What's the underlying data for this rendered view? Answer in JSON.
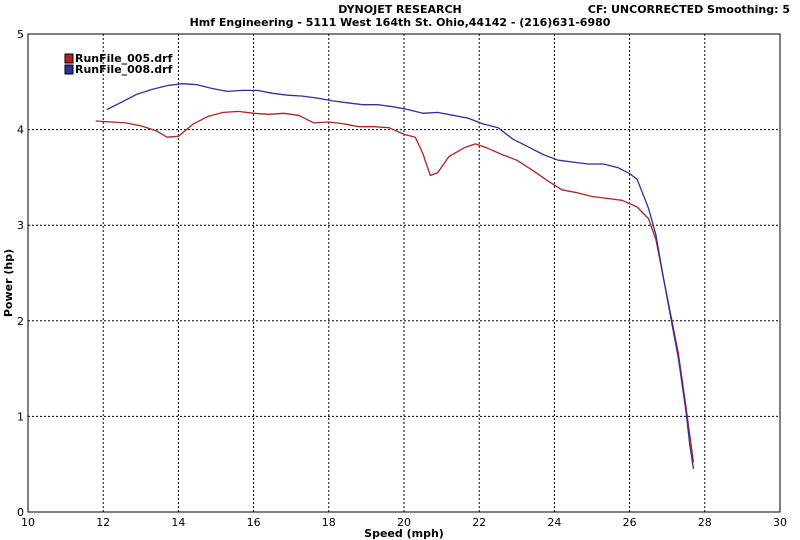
{
  "header": {
    "title": "DYNOJET RESEARCH",
    "subtitle": "Hmf Engineering - 5111 West 164th St. Ohio,44142 - (216)631-6980",
    "cf_info": "CF: UNCORRECTED  Smoothing: 5"
  },
  "chart_data": {
    "type": "line",
    "xlabel": "Speed (mph)",
    "ylabel": "Power (hp)",
    "xlim": [
      10,
      30
    ],
    "ylim": [
      0,
      5
    ],
    "xticks": [
      10,
      12,
      14,
      16,
      18,
      20,
      22,
      24,
      26,
      28,
      30
    ],
    "yticks": [
      0,
      1,
      2,
      3,
      4,
      5
    ],
    "grid": true,
    "legend_position": "top-left",
    "series": [
      {
        "name": "RunFile_005.drf",
        "color": "#b22222",
        "points": [
          [
            11.8,
            4.09
          ],
          [
            12.2,
            4.08
          ],
          [
            12.6,
            4.07
          ],
          [
            13.0,
            4.04
          ],
          [
            13.4,
            3.99
          ],
          [
            13.7,
            3.92
          ],
          [
            14.0,
            3.93
          ],
          [
            14.4,
            4.06
          ],
          [
            14.8,
            4.14
          ],
          [
            15.2,
            4.18
          ],
          [
            15.6,
            4.19
          ],
          [
            16.0,
            4.17
          ],
          [
            16.4,
            4.16
          ],
          [
            16.8,
            4.17
          ],
          [
            17.2,
            4.15
          ],
          [
            17.6,
            4.07
          ],
          [
            18.0,
            4.08
          ],
          [
            18.4,
            4.06
          ],
          [
            18.8,
            4.03
          ],
          [
            19.2,
            4.03
          ],
          [
            19.6,
            4.02
          ],
          [
            20.0,
            3.95
          ],
          [
            20.3,
            3.92
          ],
          [
            20.5,
            3.75
          ],
          [
            20.7,
            3.52
          ],
          [
            20.9,
            3.55
          ],
          [
            21.2,
            3.72
          ],
          [
            21.6,
            3.81
          ],
          [
            21.9,
            3.85
          ],
          [
            22.2,
            3.81
          ],
          [
            22.6,
            3.74
          ],
          [
            23.0,
            3.68
          ],
          [
            23.4,
            3.58
          ],
          [
            23.8,
            3.47
          ],
          [
            24.2,
            3.37
          ],
          [
            24.6,
            3.34
          ],
          [
            25.0,
            3.3
          ],
          [
            25.4,
            3.28
          ],
          [
            25.8,
            3.26
          ],
          [
            26.2,
            3.19
          ],
          [
            26.5,
            3.07
          ],
          [
            26.7,
            2.85
          ],
          [
            26.9,
            2.45
          ],
          [
            27.1,
            2.05
          ],
          [
            27.3,
            1.65
          ],
          [
            27.5,
            1.1
          ],
          [
            27.6,
            0.8
          ],
          [
            27.7,
            0.52
          ]
        ]
      },
      {
        "name": "RunFile_008.drf",
        "color": "#2f2f9f",
        "points": [
          [
            12.1,
            4.21
          ],
          [
            12.5,
            4.29
          ],
          [
            12.9,
            4.37
          ],
          [
            13.3,
            4.42
          ],
          [
            13.7,
            4.46
          ],
          [
            14.1,
            4.48
          ],
          [
            14.5,
            4.47
          ],
          [
            14.9,
            4.43
          ],
          [
            15.3,
            4.4
          ],
          [
            15.7,
            4.41
          ],
          [
            16.1,
            4.41
          ],
          [
            16.5,
            4.38
          ],
          [
            16.9,
            4.36
          ],
          [
            17.3,
            4.35
          ],
          [
            17.7,
            4.33
          ],
          [
            18.1,
            4.3
          ],
          [
            18.5,
            4.28
          ],
          [
            18.9,
            4.26
          ],
          [
            19.3,
            4.26
          ],
          [
            19.7,
            4.24
          ],
          [
            20.1,
            4.21
          ],
          [
            20.5,
            4.17
          ],
          [
            20.9,
            4.18
          ],
          [
            21.3,
            4.15
          ],
          [
            21.7,
            4.12
          ],
          [
            22.1,
            4.06
          ],
          [
            22.5,
            4.02
          ],
          [
            22.9,
            3.9
          ],
          [
            23.3,
            3.82
          ],
          [
            23.7,
            3.74
          ],
          [
            24.1,
            3.68
          ],
          [
            24.5,
            3.66
          ],
          [
            24.9,
            3.64
          ],
          [
            25.3,
            3.64
          ],
          [
            25.7,
            3.6
          ],
          [
            26.0,
            3.54
          ],
          [
            26.2,
            3.48
          ],
          [
            26.5,
            3.18
          ],
          [
            26.7,
            2.9
          ],
          [
            26.9,
            2.45
          ],
          [
            27.1,
            2.02
          ],
          [
            27.3,
            1.6
          ],
          [
            27.5,
            1.05
          ],
          [
            27.6,
            0.7
          ],
          [
            27.7,
            0.45
          ]
        ]
      }
    ]
  }
}
